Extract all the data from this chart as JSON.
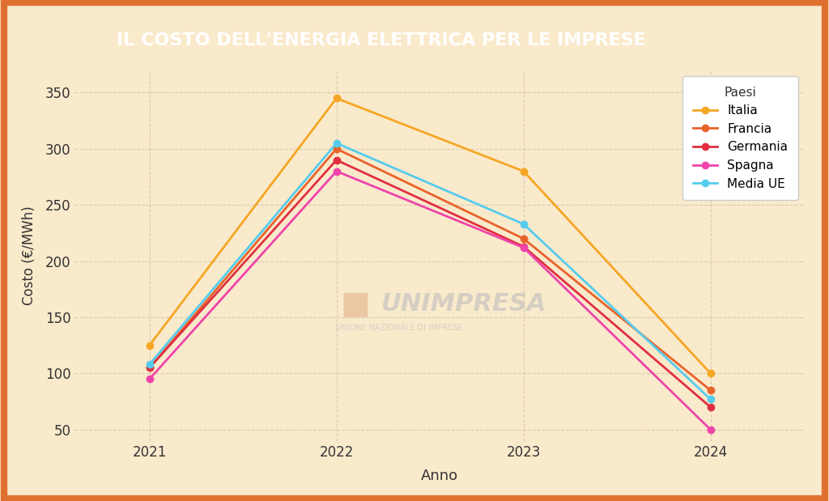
{
  "title": "IL COSTO DELL'ENERGIA ELETTRICA PER LE IMPRESE",
  "xlabel": "Anno",
  "ylabel": "Costo (€/MWh)",
  "legend_title": "Paesi",
  "years": [
    2021,
    2022,
    2023,
    2024
  ],
  "series": [
    {
      "label": "Italia",
      "color": "#F5A623",
      "values": [
        125,
        345,
        280,
        100
      ]
    },
    {
      "label": "Francia",
      "color": "#E8632A",
      "values": [
        105,
        300,
        220,
        85
      ]
    },
    {
      "label": "Germania",
      "color": "#E03040",
      "values": [
        105,
        290,
        213,
        70
      ]
    },
    {
      "label": "Spagna",
      "color": "#EE44AA",
      "values": [
        95,
        280,
        212,
        50
      ]
    },
    {
      "label": "Media UE",
      "color": "#55CCEE",
      "values": [
        108,
        305,
        233,
        77
      ]
    }
  ],
  "ylim": [
    40,
    370
  ],
  "yticks": [
    50,
    100,
    150,
    200,
    250,
    300,
    350
  ],
  "background_color": "#FAEACC",
  "plot_bg_color": "#FAEACC",
  "outer_border_color": "#E07030",
  "outer_border_lw": 6,
  "title_box_color": "#C0622A",
  "title_text_color": "#FFFFFF",
  "grid_color": "#CCBBAA",
  "grid_style": "--",
  "grid_alpha": 0.7,
  "line_width": 2.0,
  "marker": "o",
  "marker_size": 6
}
